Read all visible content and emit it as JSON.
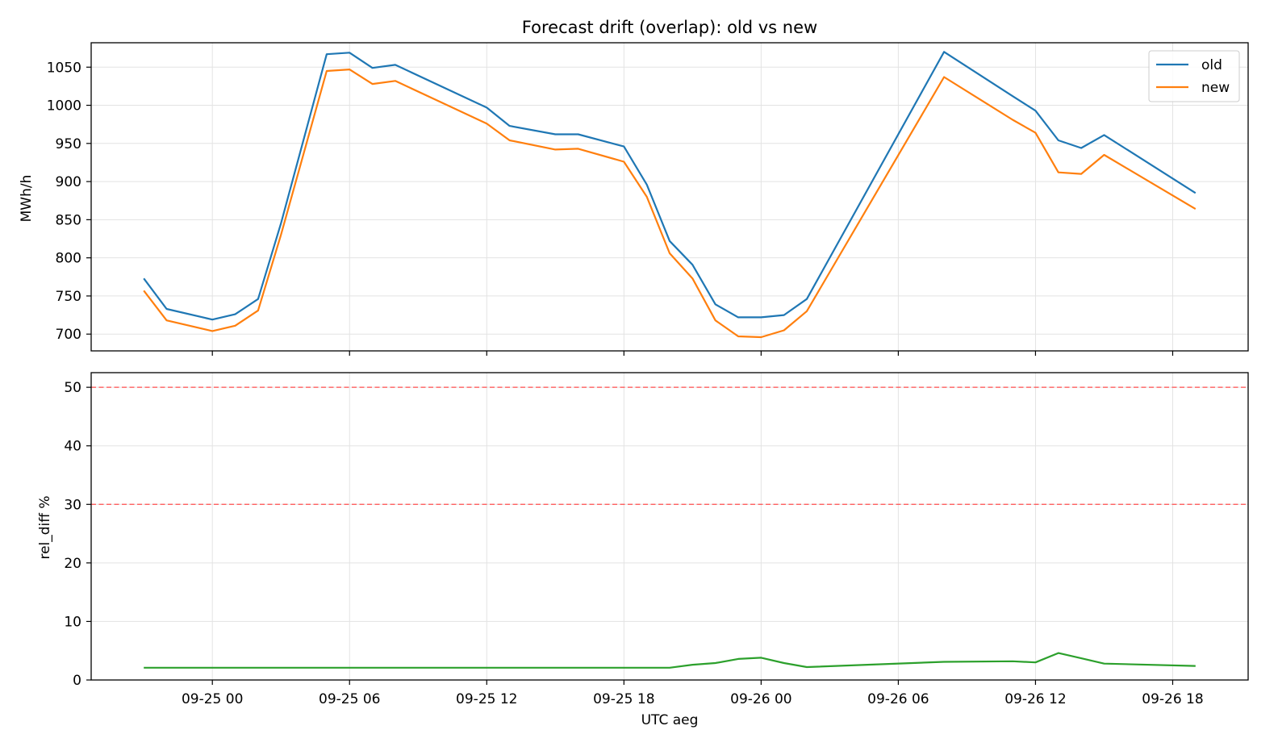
{
  "chart_data": [
    {
      "type": "line",
      "title": "Forecast drift (overlap): old vs new",
      "xlabel": "",
      "ylabel": "MWh/h",
      "ylim": [
        678,
        1082
      ],
      "grid": true,
      "legend_position": "top-right",
      "x": [
        "09-24 21:00",
        "09-24 22:00",
        "09-25 00:00",
        "09-25 01:00",
        "09-25 02:00",
        "09-25 03:00",
        "09-25 05:00",
        "09-25 06:00",
        "09-25 07:00",
        "09-25 08:00",
        "09-25 12:00",
        "09-25 13:00",
        "09-25 15:00",
        "09-25 16:00",
        "09-25 18:00",
        "09-25 19:00",
        "09-25 20:00",
        "09-25 21:00",
        "09-25 22:00",
        "09-25 23:00",
        "09-26 00:00",
        "09-26 01:00",
        "09-26 02:00",
        "09-26 08:00",
        "09-26 11:00",
        "09-26 12:00",
        "09-26 13:00",
        "09-26 14:00",
        "09-26 15:00",
        "09-26 19:00"
      ],
      "series": [
        {
          "name": "old",
          "color": "#1f77b4",
          "values": [
            773,
            733,
            719,
            726,
            746,
            845,
            1067,
            1069,
            1049,
            1053,
            997,
            973,
            962,
            962,
            946,
            896,
            822,
            791,
            739,
            722,
            722,
            725,
            746,
            1070,
            1012,
            993,
            954,
            944,
            961,
            885
          ]
        },
        {
          "name": "new",
          "color": "#ff7f0e",
          "values": [
            757,
            718,
            704,
            711,
            731,
            830,
            1045,
            1047,
            1028,
            1032,
            976,
            954,
            942,
            943,
            926,
            880,
            806,
            773,
            718,
            697,
            696,
            705,
            730,
            1037,
            981,
            964,
            912,
            910,
            935,
            864
          ]
        }
      ],
      "yticks": [
        "700",
        "750",
        "800",
        "850",
        "900",
        "950",
        "1000",
        "1050"
      ]
    },
    {
      "type": "line",
      "title": "",
      "xlabel": "UTC aeg",
      "ylabel": "rel_diff %",
      "ylim": [
        0,
        52.5
      ],
      "grid": true,
      "reference_lines": [
        {
          "y": 50,
          "color": "#ff4d4d",
          "style": "dashed"
        },
        {
          "y": 30,
          "color": "#ff4d4d",
          "style": "dashed"
        }
      ],
      "x": [
        "09-24 21:00",
        "09-24 22:00",
        "09-25 20:00",
        "09-25 21:00",
        "09-25 22:00",
        "09-25 23:00",
        "09-26 00:00",
        "09-26 01:00",
        "09-26 02:00",
        "09-26 08:00",
        "09-26 11:00",
        "09-26 12:00",
        "09-26 13:00",
        "09-26 14:00",
        "09-26 15:00",
        "09-26 19:00"
      ],
      "series": [
        {
          "name": "",
          "color": "#2ca02c",
          "values": [
            2.1,
            2.1,
            2.1,
            2.6,
            2.9,
            3.6,
            3.8,
            2.9,
            2.2,
            3.1,
            3.2,
            3.0,
            4.6,
            3.7,
            2.8,
            2.4
          ]
        }
      ],
      "yticks": [
        "0",
        "10",
        "20",
        "30",
        "40",
        "50"
      ],
      "xticks": [
        "09-25 00",
        "09-25 06",
        "09-25 12",
        "09-25 18",
        "09-26 00",
        "09-26 06",
        "09-26 12",
        "09-26 18"
      ]
    }
  ]
}
